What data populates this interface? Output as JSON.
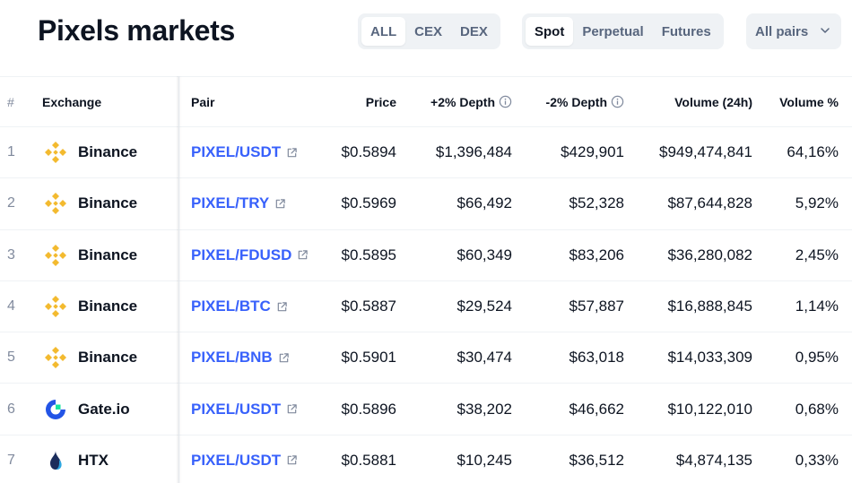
{
  "page": {
    "title": "Pixels markets"
  },
  "filters": {
    "venue": [
      {
        "label": "ALL",
        "active": true
      },
      {
        "label": "CEX",
        "active": false
      },
      {
        "label": "DEX",
        "active": false
      }
    ],
    "market": [
      {
        "label": "Spot",
        "active": true
      },
      {
        "label": "Perpetual",
        "active": false
      },
      {
        "label": "Futures",
        "active": false
      }
    ],
    "pairs_select": {
      "label": "All pairs",
      "icon": "chevron-down-icon"
    }
  },
  "table": {
    "headers": {
      "num": "#",
      "exchange": "Exchange",
      "pair": "Pair",
      "price": "Price",
      "depth_plus": "+2% Depth",
      "depth_minus": "-2% Depth",
      "volume": "Volume (24h)",
      "volume_pct": "Volume %"
    },
    "rows": [
      {
        "num": "1",
        "exchange": "Binance",
        "icon": "binance-logo-icon",
        "pair": "PIXEL/USDT",
        "price": "$0.5894",
        "depth_plus": "$1,396,484",
        "depth_minus": "$429,901",
        "volume": "$949,474,841",
        "volume_pct": "64,16%"
      },
      {
        "num": "2",
        "exchange": "Binance",
        "icon": "binance-logo-icon",
        "pair": "PIXEL/TRY",
        "price": "$0.5969",
        "depth_plus": "$66,492",
        "depth_minus": "$52,328",
        "volume": "$87,644,828",
        "volume_pct": "5,92%"
      },
      {
        "num": "3",
        "exchange": "Binance",
        "icon": "binance-logo-icon",
        "pair": "PIXEL/FDUSD",
        "price": "$0.5895",
        "depth_plus": "$60,349",
        "depth_minus": "$83,206",
        "volume": "$36,280,082",
        "volume_pct": "2,45%"
      },
      {
        "num": "4",
        "exchange": "Binance",
        "icon": "binance-logo-icon",
        "pair": "PIXEL/BTC",
        "price": "$0.5887",
        "depth_plus": "$29,524",
        "depth_minus": "$57,887",
        "volume": "$16,888,845",
        "volume_pct": "1,14%"
      },
      {
        "num": "5",
        "exchange": "Binance",
        "icon": "binance-logo-icon",
        "pair": "PIXEL/BNB",
        "price": "$0.5901",
        "depth_plus": "$30,474",
        "depth_minus": "$63,018",
        "volume": "$14,033,309",
        "volume_pct": "0,95%"
      },
      {
        "num": "6",
        "exchange": "Gate.io",
        "icon": "gateio-logo-icon",
        "pair": "PIXEL/USDT",
        "price": "$0.5896",
        "depth_plus": "$38,202",
        "depth_minus": "$46,662",
        "volume": "$10,122,010",
        "volume_pct": "0,68%"
      },
      {
        "num": "7",
        "exchange": "HTX",
        "icon": "htx-logo-icon",
        "pair": "PIXEL/USDT",
        "price": "$0.5881",
        "depth_plus": "$10,245",
        "depth_minus": "$36,512",
        "volume": "$4,874,135",
        "volume_pct": "0,33%"
      }
    ]
  },
  "colors": {
    "link": "#3861fb",
    "binance": "#f3ba2f",
    "gate": "#2354e6",
    "muted": "#808a9d"
  }
}
